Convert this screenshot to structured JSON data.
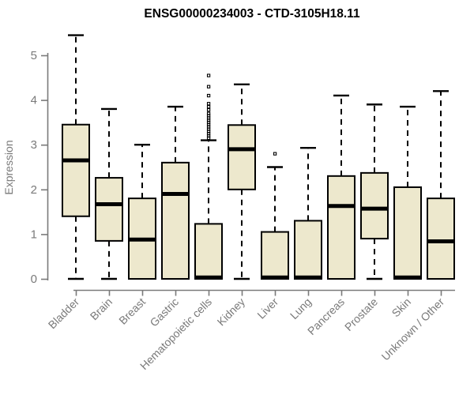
{
  "chart_data": {
    "type": "boxplot",
    "title": "ENSG00000234003 - CTD-3105H18.11",
    "xlabel": "",
    "ylabel": "Expression",
    "y_ticks": [
      0,
      1,
      2,
      3,
      4,
      5
    ],
    "ylim": [
      0,
      5.6
    ],
    "grid": false,
    "legend": "none",
    "categories": [
      "Bladder",
      "Brain",
      "Breast",
      "Gastric",
      "Hematopoietic cells",
      "Kidney",
      "Liver",
      "Lung",
      "Pancreas",
      "Prostate",
      "Skin",
      "Unknown / Other"
    ],
    "boxes": [
      {
        "label": "Bladder",
        "whisker_low": 0,
        "q1": 1.4,
        "median": 2.65,
        "q3": 3.45,
        "whisker_high": 5.45,
        "outliers": []
      },
      {
        "label": "Brain",
        "whisker_low": 0,
        "q1": 0.85,
        "median": 1.67,
        "q3": 2.26,
        "whisker_high": 3.8,
        "outliers": []
      },
      {
        "label": "Breast",
        "whisker_low": 0,
        "q1": 0.0,
        "median": 0.88,
        "q3": 1.8,
        "whisker_high": 3.0,
        "outliers": []
      },
      {
        "label": "Gastric",
        "whisker_low": 0,
        "q1": 0.0,
        "median": 1.9,
        "q3": 2.6,
        "whisker_high": 3.85,
        "outliers": []
      },
      {
        "label": "Hematopoietic cells",
        "whisker_low": 0,
        "q1": 0.0,
        "median": 0.03,
        "q3": 1.23,
        "whisker_high": 3.1,
        "outliers": [
          3.15,
          3.2,
          3.25,
          3.3,
          3.35,
          3.4,
          3.45,
          3.5,
          3.55,
          3.6,
          3.65,
          3.7,
          3.78,
          3.85,
          3.92,
          4.1,
          4.3,
          4.55
        ]
      },
      {
        "label": "Kidney",
        "whisker_low": 0,
        "q1": 2.0,
        "median": 2.9,
        "q3": 3.44,
        "whisker_high": 4.35,
        "outliers": []
      },
      {
        "label": "Liver",
        "whisker_low": 0,
        "q1": 0.0,
        "median": 0.03,
        "q3": 1.05,
        "whisker_high": 2.5,
        "outliers": [
          2.8
        ]
      },
      {
        "label": "Lung",
        "whisker_low": 0,
        "q1": 0.0,
        "median": 0.03,
        "q3": 1.3,
        "whisker_high": 2.93,
        "outliers": []
      },
      {
        "label": "Pancreas",
        "whisker_low": 0,
        "q1": 0.0,
        "median": 1.63,
        "q3": 2.3,
        "whisker_high": 4.1,
        "outliers": []
      },
      {
        "label": "Prostate",
        "whisker_low": 0,
        "q1": 0.9,
        "median": 1.57,
        "q3": 2.37,
        "whisker_high": 3.9,
        "outliers": []
      },
      {
        "label": "Skin",
        "whisker_low": 0,
        "q1": 0.0,
        "median": 0.03,
        "q3": 2.05,
        "whisker_high": 3.85,
        "outliers": []
      },
      {
        "label": "Unknown / Other",
        "whisker_low": 0,
        "q1": 0.0,
        "median": 0.84,
        "q3": 1.8,
        "whisker_high": 4.2,
        "outliers": []
      }
    ],
    "colors": {
      "box_fill": "#ede8cd",
      "box_border": "#000000",
      "median": "#000000",
      "whisker": "#000000",
      "outlier": "#000000",
      "axis": "#7a7a7a",
      "tick_label": "#7a7a7a",
      "title": "#000000",
      "background": "#ffffff"
    }
  }
}
